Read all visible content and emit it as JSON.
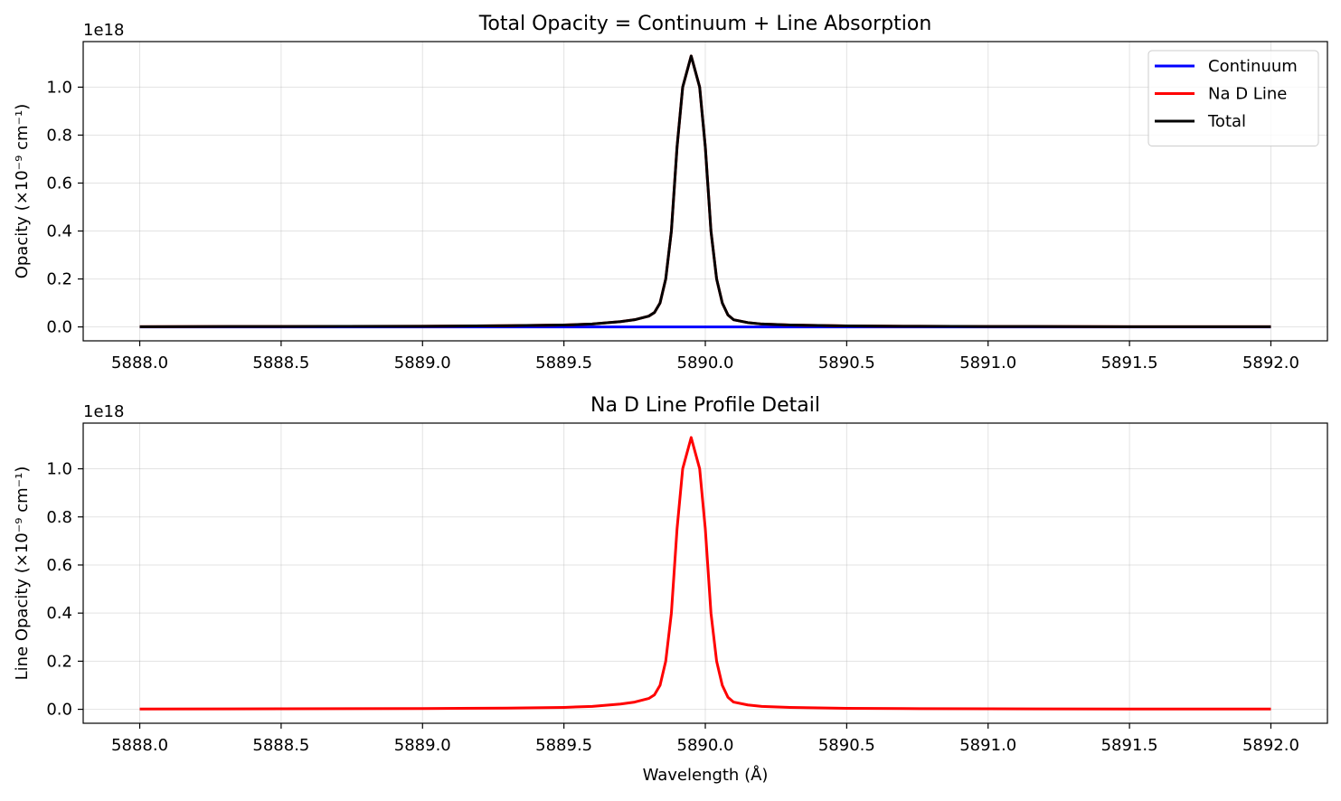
{
  "figure": {
    "background": "#ffffff"
  },
  "chart_data": [
    {
      "type": "line",
      "title": "Total Opacity = Continuum + Line Absorption",
      "xlabel": "",
      "ylabel": "Opacity (×10⁻⁹ cm⁻¹)",
      "offset_text": "1e18",
      "xlim": [
        5887.8,
        5892.2
      ],
      "ylim": [
        -0.058,
        1.19
      ],
      "xticks": [
        5888.0,
        5888.5,
        5889.0,
        5889.5,
        5890.0,
        5890.5,
        5891.0,
        5891.5,
        5892.0
      ],
      "xtick_labels": [
        "5888.0",
        "5888.5",
        "5889.0",
        "5889.5",
        "5890.0",
        "5890.5",
        "5891.0",
        "5891.5",
        "5892.0"
      ],
      "yticks": [
        0.0,
        0.2,
        0.4,
        0.6,
        0.8,
        1.0
      ],
      "ytick_labels": [
        "0.0",
        "0.2",
        "0.4",
        "0.6",
        "0.8",
        "1.0"
      ],
      "grid": true,
      "legend": "top-right",
      "series": [
        {
          "name": "Continuum",
          "color": "#0000ff",
          "x": [
            5888.0,
            5892.0
          ],
          "y": [
            0.0,
            0.0
          ]
        },
        {
          "name": "Na D Line",
          "color": "#ff0000",
          "x": [
            5888.0,
            5888.5,
            5889.0,
            5889.3,
            5889.5,
            5889.6,
            5889.7,
            5889.75,
            5889.8,
            5889.82,
            5889.84,
            5889.86,
            5889.88,
            5889.9,
            5889.92,
            5889.95,
            5889.98,
            5890.0,
            5890.02,
            5890.04,
            5890.06,
            5890.08,
            5890.1,
            5890.15,
            5890.2,
            5890.3,
            5890.4,
            5890.5,
            5890.7,
            5891.0,
            5891.5,
            5892.0
          ],
          "y": [
            0.001,
            0.002,
            0.003,
            0.005,
            0.008,
            0.012,
            0.022,
            0.03,
            0.045,
            0.06,
            0.1,
            0.2,
            0.4,
            0.75,
            1.0,
            1.13,
            1.0,
            0.75,
            0.4,
            0.2,
            0.1,
            0.05,
            0.03,
            0.018,
            0.012,
            0.008,
            0.006,
            0.004,
            0.003,
            0.002,
            0.001,
            0.001
          ]
        },
        {
          "name": "Total",
          "color": "#000000",
          "x": [
            5888.0,
            5888.5,
            5889.0,
            5889.3,
            5889.5,
            5889.6,
            5889.7,
            5889.75,
            5889.8,
            5889.82,
            5889.84,
            5889.86,
            5889.88,
            5889.9,
            5889.92,
            5889.95,
            5889.98,
            5890.0,
            5890.02,
            5890.04,
            5890.06,
            5890.08,
            5890.1,
            5890.15,
            5890.2,
            5890.3,
            5890.4,
            5890.5,
            5890.7,
            5891.0,
            5891.5,
            5892.0
          ],
          "y": [
            0.001,
            0.002,
            0.003,
            0.005,
            0.008,
            0.012,
            0.022,
            0.03,
            0.045,
            0.06,
            0.1,
            0.2,
            0.4,
            0.75,
            1.0,
            1.13,
            1.0,
            0.75,
            0.4,
            0.2,
            0.1,
            0.05,
            0.03,
            0.018,
            0.012,
            0.008,
            0.006,
            0.004,
            0.003,
            0.002,
            0.001,
            0.001
          ]
        }
      ]
    },
    {
      "type": "line",
      "title": "Na D Line Profile Detail",
      "xlabel": "Wavelength (Å)",
      "ylabel": "Line Opacity (×10⁻⁹ cm⁻¹)",
      "offset_text": "1e18",
      "xlim": [
        5887.8,
        5892.2
      ],
      "ylim": [
        -0.058,
        1.19
      ],
      "xticks": [
        5888.0,
        5888.5,
        5889.0,
        5889.5,
        5890.0,
        5890.5,
        5891.0,
        5891.5,
        5892.0
      ],
      "xtick_labels": [
        "5888.0",
        "5888.5",
        "5889.0",
        "5889.5",
        "5890.0",
        "5890.5",
        "5891.0",
        "5891.5",
        "5892.0"
      ],
      "yticks": [
        0.0,
        0.2,
        0.4,
        0.6,
        0.8,
        1.0
      ],
      "ytick_labels": [
        "0.0",
        "0.2",
        "0.4",
        "0.6",
        "0.8",
        "1.0"
      ],
      "grid": true,
      "legend": "none",
      "series": [
        {
          "color": "#ff0000",
          "x": [
            5888.0,
            5888.5,
            5889.0,
            5889.3,
            5889.5,
            5889.6,
            5889.7,
            5889.75,
            5889.8,
            5889.82,
            5889.84,
            5889.86,
            5889.88,
            5889.9,
            5889.92,
            5889.95,
            5889.98,
            5890.0,
            5890.02,
            5890.04,
            5890.06,
            5890.08,
            5890.1,
            5890.15,
            5890.2,
            5890.3,
            5890.4,
            5890.5,
            5890.7,
            5891.0,
            5891.5,
            5892.0
          ],
          "y": [
            0.001,
            0.002,
            0.003,
            0.005,
            0.008,
            0.012,
            0.022,
            0.03,
            0.045,
            0.06,
            0.1,
            0.2,
            0.4,
            0.75,
            1.0,
            1.13,
            1.0,
            0.75,
            0.4,
            0.2,
            0.1,
            0.05,
            0.03,
            0.018,
            0.012,
            0.008,
            0.006,
            0.004,
            0.003,
            0.002,
            0.001,
            0.001
          ]
        }
      ]
    }
  ]
}
